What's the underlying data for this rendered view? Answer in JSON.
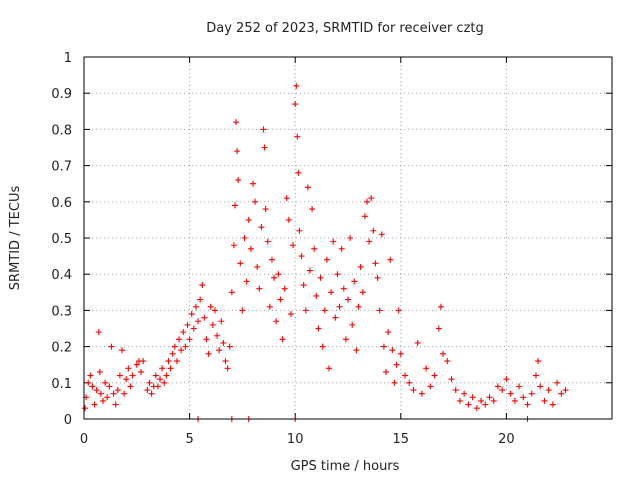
{
  "chart_data": {
    "type": "scatter",
    "title": "Day 252 of 2023, SRMTID for receiver cztg",
    "xlabel": "GPS time / hours",
    "ylabel": "SRMTID / TECUs",
    "xlim": [
      0,
      25
    ],
    "ylim": [
      0,
      1
    ],
    "x_ticks": [
      0,
      5,
      10,
      15,
      20
    ],
    "x_tick_labels": [
      "0",
      "5",
      "10",
      "15",
      "20"
    ],
    "y_ticks": [
      0,
      0.1,
      0.2,
      0.3,
      0.4,
      0.5,
      0.6,
      0.7,
      0.8,
      0.9,
      1
    ],
    "y_tick_labels": [
      "0",
      "0.1",
      "0.2",
      "0.3",
      "0.4",
      "0.5",
      "0.6",
      "0.7",
      "0.8",
      "0.9",
      "1"
    ],
    "grid": true,
    "marker": "+",
    "series": [
      {
        "name": "SRMTID",
        "color": "#ff0000",
        "points": [
          [
            0.05,
            0.03
          ],
          [
            0.1,
            0.06
          ],
          [
            0.2,
            0.1
          ],
          [
            0.3,
            0.12
          ],
          [
            0.4,
            0.09
          ],
          [
            0.5,
            0.04
          ],
          [
            0.6,
            0.08
          ],
          [
            0.7,
            0.24
          ],
          [
            0.75,
            0.13
          ],
          [
            0.8,
            0.07
          ],
          [
            0.9,
            0.05
          ],
          [
            1.0,
            0.1
          ],
          [
            1.1,
            0.06
          ],
          [
            1.2,
            0.09
          ],
          [
            1.3,
            0.2
          ],
          [
            1.4,
            0.07
          ],
          [
            1.5,
            0.04
          ],
          [
            1.6,
            0.08
          ],
          [
            1.7,
            0.12
          ],
          [
            1.8,
            0.19
          ],
          [
            1.9,
            0.07
          ],
          [
            2.0,
            0.11
          ],
          [
            2.1,
            0.14
          ],
          [
            2.2,
            0.09
          ],
          [
            2.3,
            0.12
          ],
          [
            2.5,
            0.15
          ],
          [
            2.6,
            0.16
          ],
          [
            2.7,
            0.13
          ],
          [
            2.8,
            0.16
          ],
          [
            3.0,
            0.08
          ],
          [
            3.1,
            0.1
          ],
          [
            3.2,
            0.07
          ],
          [
            3.3,
            0.09
          ],
          [
            3.4,
            0.12
          ],
          [
            3.5,
            0.09
          ],
          [
            3.6,
            0.11
          ],
          [
            3.7,
            0.14
          ],
          [
            3.8,
            0.1
          ],
          [
            3.9,
            0.12
          ],
          [
            4.0,
            0.16
          ],
          [
            4.1,
            0.14
          ],
          [
            4.2,
            0.18
          ],
          [
            4.3,
            0.2
          ],
          [
            4.4,
            0.16
          ],
          [
            4.5,
            0.22
          ],
          [
            4.6,
            0.19
          ],
          [
            4.7,
            0.24
          ],
          [
            4.8,
            0.2
          ],
          [
            4.9,
            0.26
          ],
          [
            5.0,
            0.22
          ],
          [
            5.1,
            0.29
          ],
          [
            5.2,
            0.25
          ],
          [
            5.3,
            0.31
          ],
          [
            5.4,
            0.27
          ],
          [
            5.5,
            0.33
          ],
          [
            5.6,
            0.37
          ],
          [
            5.7,
            0.28
          ],
          [
            5.8,
            0.22
          ],
          [
            5.9,
            0.18
          ],
          [
            6.0,
            0.31
          ],
          [
            6.1,
            0.26
          ],
          [
            6.2,
            0.3
          ],
          [
            6.3,
            0.23
          ],
          [
            6.4,
            0.19
          ],
          [
            6.5,
            0.27
          ],
          [
            6.6,
            0.21
          ],
          [
            6.7,
            0.16
          ],
          [
            6.8,
            0.14
          ],
          [
            6.9,
            0.2
          ],
          [
            7.0,
            0.35
          ],
          [
            7.1,
            0.48
          ],
          [
            7.15,
            0.59
          ],
          [
            7.2,
            0.82
          ],
          [
            7.25,
            0.74
          ],
          [
            7.3,
            0.66
          ],
          [
            7.4,
            0.43
          ],
          [
            7.5,
            0.3
          ],
          [
            7.6,
            0.5
          ],
          [
            7.7,
            0.38
          ],
          [
            7.8,
            0.55
          ],
          [
            7.9,
            0.47
          ],
          [
            8.0,
            0.65
          ],
          [
            8.1,
            0.6
          ],
          [
            8.2,
            0.42
          ],
          [
            8.3,
            0.36
          ],
          [
            8.4,
            0.53
          ],
          [
            8.5,
            0.8
          ],
          [
            8.55,
            0.75
          ],
          [
            8.6,
            0.58
          ],
          [
            8.7,
            0.49
          ],
          [
            8.8,
            0.31
          ],
          [
            8.9,
            0.44
          ],
          [
            9.0,
            0.39
          ],
          [
            9.1,
            0.27
          ],
          [
            9.2,
            0.4
          ],
          [
            9.3,
            0.33
          ],
          [
            9.4,
            0.22
          ],
          [
            9.5,
            0.36
          ],
          [
            9.6,
            0.61
          ],
          [
            9.7,
            0.55
          ],
          [
            9.8,
            0.29
          ],
          [
            9.9,
            0.48
          ],
          [
            10.0,
            0.87
          ],
          [
            10.05,
            0.92
          ],
          [
            10.1,
            0.78
          ],
          [
            10.15,
            0.68
          ],
          [
            10.2,
            0.52
          ],
          [
            10.3,
            0.45
          ],
          [
            10.4,
            0.37
          ],
          [
            10.5,
            0.3
          ],
          [
            10.6,
            0.64
          ],
          [
            10.7,
            0.41
          ],
          [
            10.8,
            0.58
          ],
          [
            10.9,
            0.47
          ],
          [
            11.0,
            0.34
          ],
          [
            11.1,
            0.25
          ],
          [
            11.2,
            0.39
          ],
          [
            11.3,
            0.2
          ],
          [
            11.4,
            0.3
          ],
          [
            11.5,
            0.44
          ],
          [
            11.6,
            0.14
          ],
          [
            11.7,
            0.35
          ],
          [
            11.8,
            0.49
          ],
          [
            11.9,
            0.28
          ],
          [
            12.0,
            0.4
          ],
          [
            12.1,
            0.31
          ],
          [
            12.2,
            0.47
          ],
          [
            12.3,
            0.36
          ],
          [
            12.4,
            0.22
          ],
          [
            12.5,
            0.33
          ],
          [
            12.6,
            0.5
          ],
          [
            12.7,
            0.26
          ],
          [
            12.8,
            0.38
          ],
          [
            12.9,
            0.19
          ],
          [
            13.0,
            0.31
          ],
          [
            13.1,
            0.42
          ],
          [
            13.2,
            0.35
          ],
          [
            13.3,
            0.56
          ],
          [
            13.4,
            0.6
          ],
          [
            13.5,
            0.49
          ],
          [
            13.6,
            0.61
          ],
          [
            13.7,
            0.52
          ],
          [
            13.8,
            0.43
          ],
          [
            13.9,
            0.39
          ],
          [
            14.0,
            0.3
          ],
          [
            14.1,
            0.51
          ],
          [
            14.2,
            0.2
          ],
          [
            14.3,
            0.13
          ],
          [
            14.4,
            0.24
          ],
          [
            14.5,
            0.44
          ],
          [
            14.6,
            0.19
          ],
          [
            14.7,
            0.1
          ],
          [
            14.8,
            0.15
          ],
          [
            14.9,
            0.3
          ],
          [
            15.0,
            0.18
          ],
          [
            15.2,
            0.12
          ],
          [
            15.4,
            0.1
          ],
          [
            15.6,
            0.08
          ],
          [
            15.8,
            0.21
          ],
          [
            16.0,
            0.07
          ],
          [
            16.2,
            0.14
          ],
          [
            16.4,
            0.09
          ],
          [
            16.6,
            0.12
          ],
          [
            16.8,
            0.25
          ],
          [
            16.9,
            0.31
          ],
          [
            17.0,
            0.18
          ],
          [
            17.2,
            0.16
          ],
          [
            17.4,
            0.11
          ],
          [
            17.6,
            0.08
          ],
          [
            17.8,
            0.05
          ],
          [
            18.0,
            0.07
          ],
          [
            18.2,
            0.04
          ],
          [
            18.4,
            0.06
          ],
          [
            18.6,
            0.03
          ],
          [
            18.8,
            0.05
          ],
          [
            19.0,
            0.04
          ],
          [
            19.2,
            0.06
          ],
          [
            19.4,
            0.05
          ],
          [
            19.6,
            0.09
          ],
          [
            19.8,
            0.08
          ],
          [
            20.0,
            0.11
          ],
          [
            20.2,
            0.07
          ],
          [
            20.4,
            0.05
          ],
          [
            20.6,
            0.09
          ],
          [
            20.8,
            0.06
          ],
          [
            21.0,
            0.04
          ],
          [
            21.2,
            0.07
          ],
          [
            21.4,
            0.12
          ],
          [
            21.5,
            0.16
          ],
          [
            21.6,
            0.09
          ],
          [
            21.8,
            0.05
          ],
          [
            22.0,
            0.08
          ],
          [
            22.2,
            0.04
          ],
          [
            22.4,
            0.1
          ],
          [
            22.6,
            0.07
          ],
          [
            22.8,
            0.08
          ],
          [
            5.4,
            0.0
          ],
          [
            7.0,
            0.0
          ],
          [
            7.8,
            0.0
          ],
          [
            10.0,
            0.0
          ],
          [
            21.0,
            0.0
          ]
        ]
      }
    ]
  }
}
